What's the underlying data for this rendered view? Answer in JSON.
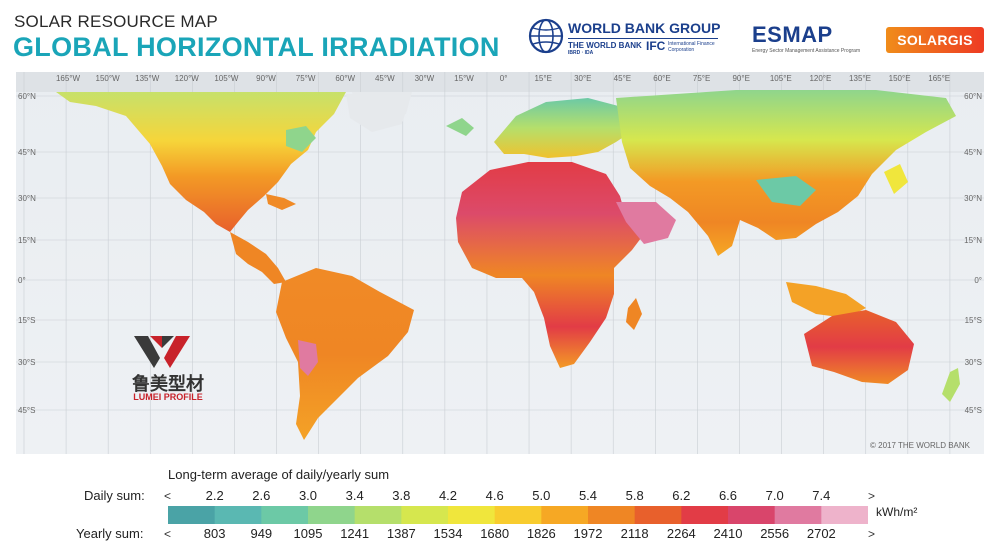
{
  "header": {
    "subtitle": "SOLAR RESOURCE MAP",
    "title": "GLOBAL HORIZONTAL IRRADIATION"
  },
  "logos": {
    "world_bank": {
      "name": "WORLD BANK GROUP",
      "sub": "THE WORLD BANK",
      "sub2": "IBRD · IDA",
      "ifc": "IFC",
      "ifc_sub": "International Finance Corporation",
      "icon": "globe-icon"
    },
    "esmap": {
      "name": "ESMAP",
      "sub": "Energy Sector Management Assistance Program"
    },
    "solargis": {
      "name": "SOLARGIS"
    }
  },
  "map": {
    "top_longitude_labels": [
      "165°W",
      "150°W",
      "135°W",
      "120°W",
      "105°W",
      "90°W",
      "75°W",
      "60°W",
      "45°W",
      "30°W",
      "15°W",
      "0°",
      "15°E",
      "30°E",
      "45°E",
      "60°E",
      "75°E",
      "90°E",
      "105°E",
      "120°E",
      "135°E",
      "150°E",
      "165°E"
    ],
    "left_latitude_labels": [
      "60°N",
      "45°N",
      "30°N",
      "15°N",
      "0°",
      "15°S",
      "30°S",
      "45°S"
    ],
    "right_latitude_labels": [
      "60°N",
      "45°N",
      "30°N",
      "15°N",
      "0°",
      "15°S",
      "30°S",
      "45°S"
    ],
    "copyright": "© 2017 THE WORLD BANK",
    "watermark": {
      "chinese": "鲁美型材",
      "english": "LUMEI PROFILE"
    }
  },
  "legend": {
    "caption": "Long-term average of daily/yearly sum",
    "daily_label": "Daily sum:",
    "yearly_label": "Yearly sum:",
    "less_symbol": "<",
    "more_symbol": ">",
    "unit": "kWh/m²",
    "daily_values": [
      "2.2",
      "2.6",
      "3.0",
      "3.4",
      "3.8",
      "4.2",
      "4.6",
      "5.0",
      "5.4",
      "5.8",
      "6.2",
      "6.6",
      "7.0",
      "7.4"
    ],
    "yearly_values": [
      "803",
      "949",
      "1095",
      "1241",
      "1387",
      "1534",
      "1680",
      "1826",
      "1972",
      "2118",
      "2264",
      "2410",
      "2556",
      "2702"
    ],
    "colors": [
      "#4aa3a6",
      "#5ab8b2",
      "#6cc9a6",
      "#8fd58c",
      "#b5df6b",
      "#d6e74e",
      "#f0e63c",
      "#f8cc2e",
      "#f6a824",
      "#ef8624",
      "#e8602c",
      "#e23c46",
      "#d9456b",
      "#e07aa0",
      "#eeb3cb"
    ]
  }
}
